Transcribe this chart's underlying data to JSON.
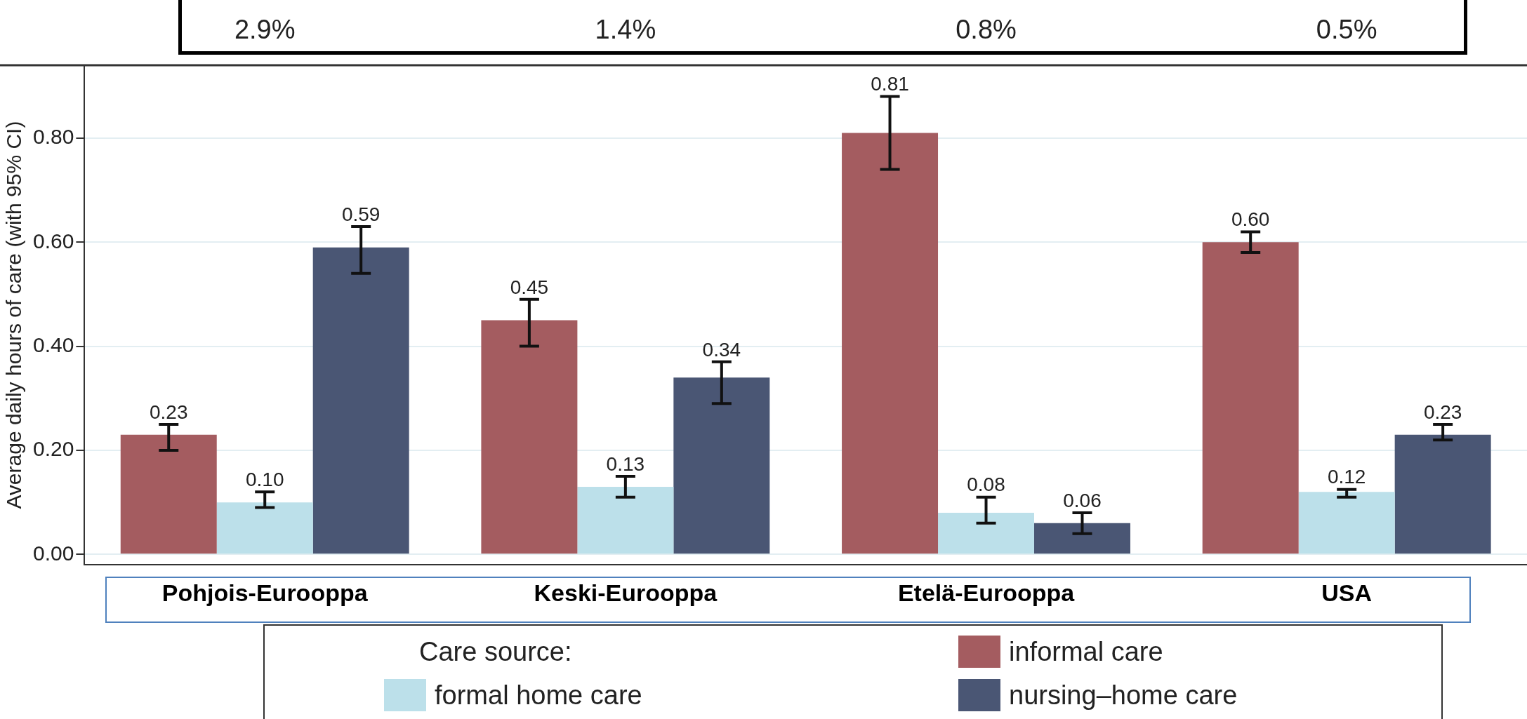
{
  "chart_data": {
    "type": "bar",
    "ylabel": "Average daily hours of care (with 95% CI)",
    "legend_title": "Care source:",
    "categories": [
      "Pohjois-Eurooppa",
      "Keski-Eurooppa",
      "Etelä-Eurooppa",
      "USA"
    ],
    "series": [
      {
        "name": "informal care",
        "color": "#a45c60",
        "values": [
          0.23,
          0.45,
          0.81,
          0.6
        ],
        "errors": [
          [
            0.2,
            0.25
          ],
          [
            0.4,
            0.49
          ],
          [
            0.74,
            0.88
          ],
          [
            0.58,
            0.62
          ]
        ],
        "value_labels": [
          "0.23",
          "0.45",
          "0.81",
          "0.60"
        ]
      },
      {
        "name": "formal home care",
        "color": "#bce0ea",
        "values": [
          0.1,
          0.13,
          0.08,
          0.12
        ],
        "errors": [
          [
            0.09,
            0.12
          ],
          [
            0.11,
            0.15
          ],
          [
            0.06,
            0.11
          ],
          [
            0.11,
            0.125
          ]
        ],
        "value_labels": [
          "0.10",
          "0.13",
          "0.08",
          "0.12"
        ]
      },
      {
        "name": "nursing–home care",
        "color": "#4a5674",
        "values": [
          0.59,
          0.34,
          0.06,
          0.23
        ],
        "errors": [
          [
            0.54,
            0.63
          ],
          [
            0.29,
            0.37
          ],
          [
            0.04,
            0.08
          ],
          [
            0.22,
            0.25
          ]
        ],
        "value_labels": [
          "0.59",
          "0.34",
          "0.06",
          "0.23"
        ]
      }
    ],
    "ylim": [
      -0.02,
      0.94
    ],
    "yticks": [
      {
        "value": 0,
        "label": "0.00"
      },
      {
        "value": 0.2,
        "label": "0.20"
      },
      {
        "value": 0.4,
        "label": "0.40"
      },
      {
        "value": 0.6,
        "label": "0.60"
      },
      {
        "value": 0.8,
        "label": "0.80"
      }
    ],
    "grid": "y",
    "legend": "bottom",
    "annotations": [
      "2.9%",
      "1.4%",
      "0.8%",
      "0.5%"
    ]
  }
}
